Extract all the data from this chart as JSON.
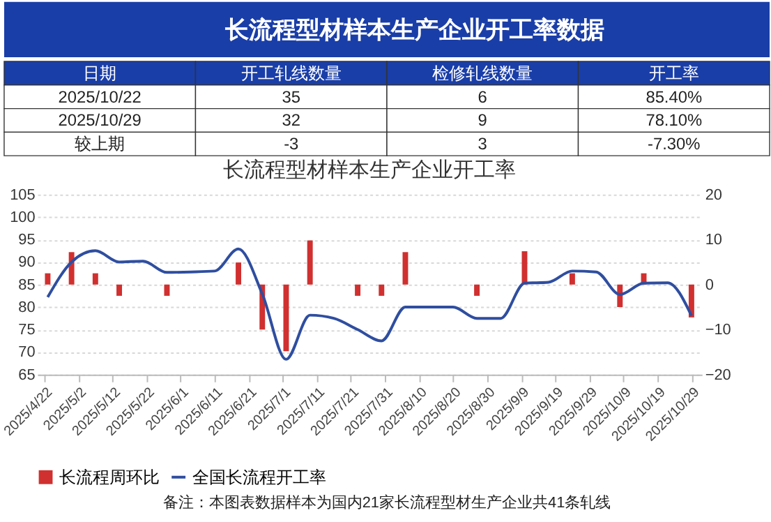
{
  "chart_data": {
    "type": "bar",
    "title": "长流程型材样本生产企业开工率数据",
    "subtitle": "长流程型材样本生产企业开工率",
    "annotations": [
      "日期",
      "开工轧线数量",
      "检修轧线数量",
      "开工率",
      "2025/10/22",
      "35",
      "6",
      "85.40%",
      "2025/10/29",
      "32",
      "9",
      "78.10%",
      "较上期",
      "-3",
      "3",
      "-7.30%",
      "备注：本图表数据样本为国内21家长流程型材生产企业共41条轧线"
    ],
    "x": [
      "2025-04-23",
      "2025-04-30",
      "2025-05-07",
      "2025-05-14",
      "2025-05-21",
      "2025-05-28",
      "2025-06-04",
      "2025-06-11",
      "2025-06-18",
      "2025-06-25",
      "2025-07-02",
      "2025-07-09",
      "2025-07-16",
      "2025-07-23",
      "2025-07-30",
      "2025-08-06",
      "2025-08-13",
      "2025-08-20",
      "2025-08-27",
      "2025-09-03",
      "2025-09-10",
      "2025-09-17",
      "2025-09-24",
      "2025-10-01",
      "2025-10-08",
      "2025-10-15",
      "2025-10-22",
      "2025-10-29"
    ],
    "series": [
      {
        "name": "长流程周环比",
        "axis": "y2",
        "color": "#d0302f",
        "values": [
          2.5,
          7.2,
          2.5,
          -2.5,
          0,
          -2.5,
          0,
          0,
          4.9,
          -10,
          -14.8,
          9.8,
          0,
          -2.5,
          -2.5,
          7.2,
          0,
          0,
          -2.5,
          0,
          7.4,
          0,
          2.5,
          0,
          -5,
          2.5,
          0,
          -7.3
        ]
      },
      {
        "name": "全国长流程开工率",
        "type": "line",
        "color": "#2f4ea0",
        "values": [
          82.2,
          90.0,
          92.5,
          90.0,
          90.2,
          87.7,
          87.8,
          88.0,
          92.9,
          82.9,
          68.4,
          78.2,
          77.5,
          75.0,
          72.5,
          80.0,
          80.0,
          80.0,
          77.5,
          77.5,
          85.3,
          85.5,
          88.0,
          87.8,
          82.8,
          85.3,
          85.4,
          78.1
        ]
      }
    ],
    "xlim": [
      "2025-04-22",
      "2025-10-30"
    ],
    "xticks": [
      {
        "value": "2025-04-22",
        "label": "2025/4/22"
      },
      {
        "value": "2025-05-02",
        "label": "2025/5/2"
      },
      {
        "value": "2025-05-12",
        "label": "2025/5/12"
      },
      {
        "value": "2025-05-22",
        "label": "2025/5/22"
      },
      {
        "value": "2025-06-01",
        "label": "2025/6/1"
      },
      {
        "value": "2025-06-11",
        "label": "2025/6/11"
      },
      {
        "value": "2025-06-21",
        "label": "2025/6/21"
      },
      {
        "value": "2025-07-01",
        "label": "2025/7/1"
      },
      {
        "value": "2025-07-11",
        "label": "2025/7/11"
      },
      {
        "value": "2025-07-21",
        "label": "2025/7/21"
      },
      {
        "value": "2025-07-31",
        "label": "2025/7/31"
      },
      {
        "value": "2025-08-10",
        "label": "2025/8/10"
      },
      {
        "value": "2025-08-20",
        "label": "2025/8/20"
      },
      {
        "value": "2025-08-30",
        "label": "2025/8/30"
      },
      {
        "value": "2025-09-09",
        "label": "2025/9/9"
      },
      {
        "value": "2025-09-19",
        "label": "2025/9/19"
      },
      {
        "value": "2025-09-29",
        "label": "2025/9/29"
      },
      {
        "value": "2025-10-09",
        "label": "2025/10/9"
      },
      {
        "value": "2025-10-19",
        "label": "2025/10/19"
      },
      {
        "value": "2025-10-29",
        "label": "2025/10/29"
      }
    ],
    "ylim": [
      65,
      105
    ],
    "yticks": [
      65,
      70,
      75,
      80,
      85,
      90,
      95,
      100,
      105
    ],
    "y2lim": [
      -20,
      20
    ],
    "y2ticks": [
      -20,
      -10,
      0,
      10,
      20
    ],
    "grid": "y",
    "legend": "bottom",
    "marker": "none",
    "line_style": "solid"
  }
}
